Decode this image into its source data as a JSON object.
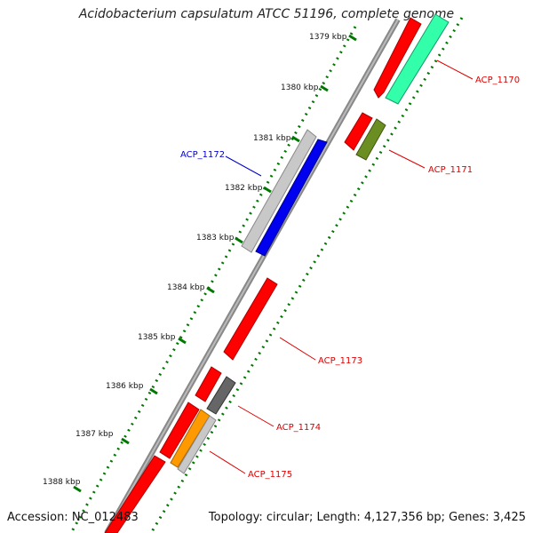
{
  "title": "Acidobacterium capsulatum ATCC 51196, complete genome",
  "footer": {
    "accession": "Accession: NC_012483",
    "summary": "Topology: circular; Length: 4,127,356 bp; Genes: 3,425"
  },
  "ticks": [
    "1379 kbp",
    "1380 kbp",
    "1381 kbp",
    "1382 kbp",
    "1383 kbp",
    "1384 kbp",
    "1385 kbp",
    "1386 kbp",
    "1387 kbp",
    "1388 kbp"
  ],
  "gene_labels": [
    {
      "text": "ACP_1170",
      "color": "#dd0000"
    },
    {
      "text": "ACP_1171",
      "color": "#dd0000"
    },
    {
      "text": "ACP_1172",
      "color": "#0000cc"
    },
    {
      "text": "ACP_1173",
      "color": "#dd0000"
    },
    {
      "text": "ACP_1174",
      "color": "#dd0000"
    },
    {
      "text": "ACP_1175",
      "color": "#dd0000"
    }
  ],
  "colors": {
    "backbone": "#888888",
    "cds": "#ff0000",
    "highlight_blue": "#0000ee",
    "teal": "#33ffaa",
    "olive": "#6b8e23",
    "orange": "#ff9900",
    "silver": "#c8c8c8",
    "dark_gray": "#666666",
    "tick_green": "#007700"
  }
}
